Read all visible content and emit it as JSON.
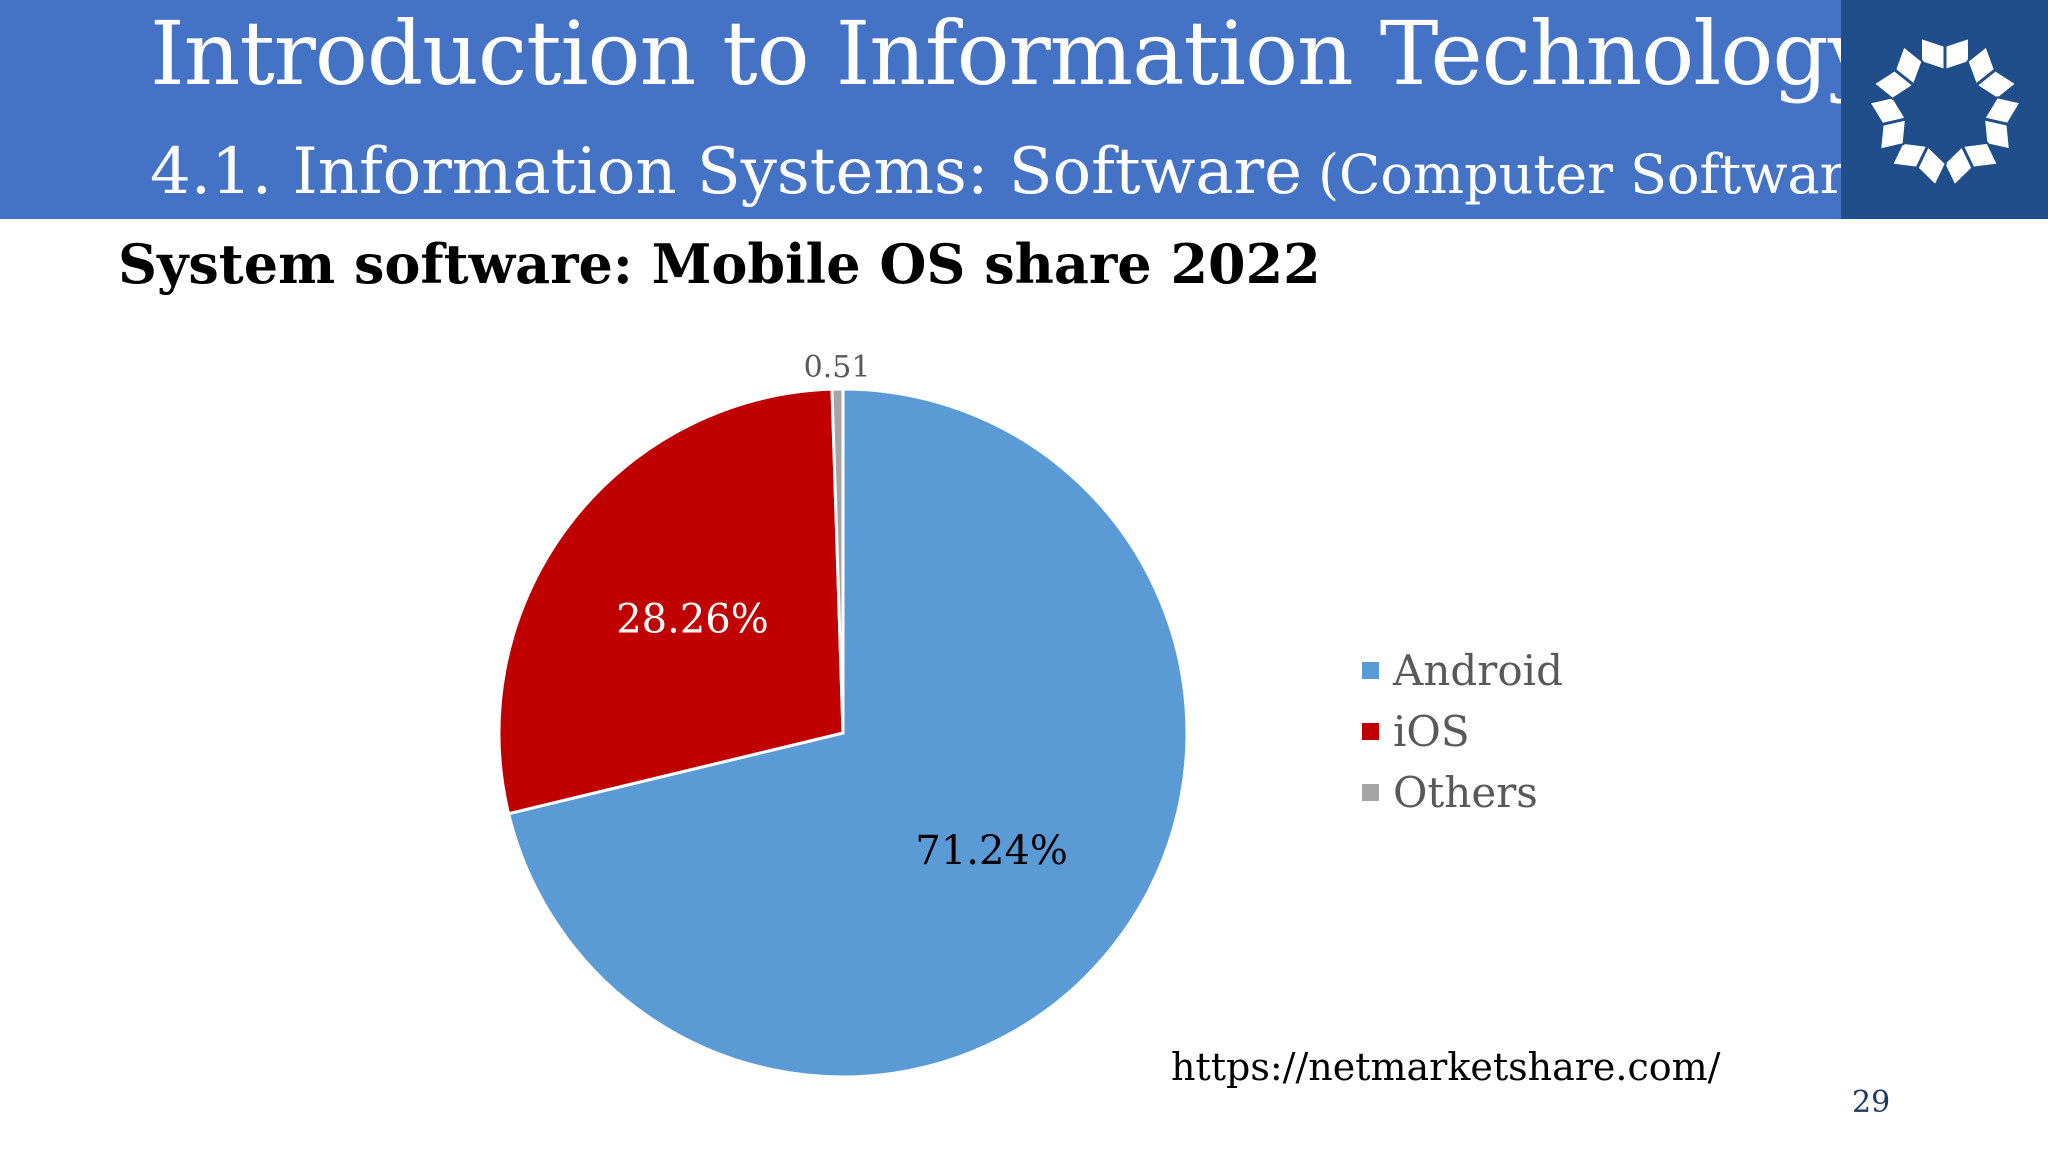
{
  "header": {
    "title": "Introduction to Information Technology",
    "subtitle_main": "4.1. Information Systems: Software",
    "subtitle_paren": "(Computer Software)"
  },
  "slide": {
    "heading": "System software: Mobile OS share 2022",
    "source": "https://netmarketshare.com/",
    "page_number": "29"
  },
  "colors": {
    "header_bg": "#4472c4",
    "logo_bg": "#1f4e8a",
    "android": "#5b9bd5",
    "ios": "#c00000",
    "others": "#a5a5a5"
  },
  "chart_data": {
    "type": "pie",
    "title": "",
    "categories": [
      "Android",
      "iOS",
      "Others"
    ],
    "values": [
      71.24,
      28.26,
      0.51
    ],
    "data_labels": [
      "71.24%",
      "28.26%",
      "0.51"
    ],
    "colors": [
      "#5b9bd5",
      "#c00000",
      "#a5a5a5"
    ],
    "start_angle_deg": 0,
    "direction": "clockwise",
    "legend_position": "right"
  }
}
